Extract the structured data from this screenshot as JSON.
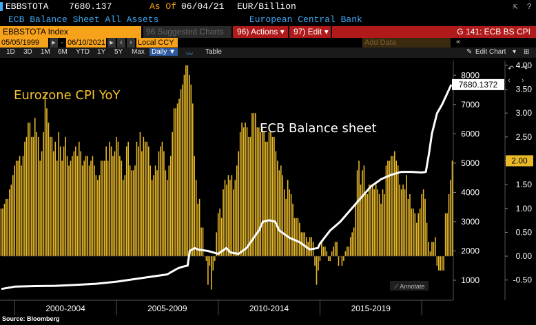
{
  "header": {
    "ticker": "EBBSTOTA",
    "last_value": "7680.137",
    "as_of_label": "As Of",
    "as_of_date": "06/04/21",
    "units": "EUR/Billion",
    "description": "ECB Balance Sheet All Assets",
    "source_name": "European Central Bank"
  },
  "toolbar": {
    "security": "EBBSTOTA Index",
    "suggested": "96 Suggested Charts",
    "actions": "96) Actions ▾",
    "edit": "97) Edit ▾",
    "chart_id": "G 141: ECB BS CPI"
  },
  "dates": {
    "start": "05/05/1999",
    "end": "06/10/2021",
    "currency": "Local CCY",
    "add_data": "Add Data"
  },
  "periods": {
    "items": [
      "1D",
      "3D",
      "1M",
      "6M",
      "YTD",
      "1Y",
      "5Y",
      "Max"
    ],
    "frequency": "Daily ▼",
    "table_label": "Table",
    "edit_chart": "Edit Chart"
  },
  "footer": {
    "source": "Source: Bloomberg"
  },
  "colors": {
    "cpi_bars": "#e9b929",
    "balance_line": "#ffffff",
    "cpi_label": "#f2c230",
    "background": "#000000"
  },
  "chart_data": {
    "type": "bar+line",
    "annotations": [
      "Eurozone CPI YoY",
      "ECB Balance sheet"
    ],
    "x_tick_labels": [
      "2000-2004",
      "2005-2009",
      "2010-2014",
      "2015-2019"
    ],
    "xlim": [
      1999.35,
      2021.45
    ],
    "left_axis": {
      "ticks": [
        1000,
        2000,
        3000,
        4000,
        5000,
        6000,
        7000,
        8000
      ],
      "range": [
        600,
        8500
      ]
    },
    "right_axis": {
      "ticks": [
        "-0.50",
        "0.00",
        "0.50",
        "1.00",
        "1.50",
        "2.00",
        "2.50",
        "3.00",
        "3.50",
        "4.00"
      ],
      "range": [
        -0.75,
        4.1
      ]
    },
    "last_value_label": "7680.1372",
    "last_cpi_label": "2.00",
    "annotate_label": "Annotate",
    "series": [
      {
        "name": "Eurozone CPI YoY",
        "type": "bar",
        "axis": "right",
        "monthly_start": "1999-05",
        "values": [
          1.0,
          1.0,
          1.1,
          1.2,
          1.2,
          1.4,
          1.5,
          1.7,
          1.9,
          2.0,
          2.0,
          2.1,
          1.9,
          2.1,
          2.4,
          2.5,
          2.8,
          2.8,
          2.5,
          2.5,
          2.9,
          2.6,
          2.5,
          2.0,
          2.2,
          2.6,
          3.4,
          3.1,
          2.8,
          2.5,
          2.5,
          2.2,
          2.4,
          2.0,
          2.6,
          2.3,
          2.0,
          2.3,
          2.5,
          2.1,
          1.9,
          2.0,
          2.1,
          2.2,
          2.3,
          2.1,
          2.4,
          2.2,
          1.9,
          2.0,
          2.1,
          2.1,
          1.9,
          2.0,
          2.1,
          1.9,
          1.7,
          1.6,
          1.7,
          2.0,
          2.0,
          2.0,
          2.3,
          2.0,
          2.4,
          2.3,
          2.1,
          2.2,
          2.5,
          2.4,
          2.1,
          2.0,
          1.6,
          1.7,
          2.3,
          2.4,
          1.9,
          1.8,
          1.8,
          1.9,
          2.4,
          2.3,
          2.6,
          2.2,
          2.5,
          2.4,
          2.4,
          2.3,
          1.9,
          1.6,
          1.7,
          1.9,
          1.8,
          2.2,
          2.3,
          2.4,
          2.2,
          1.8,
          1.6,
          1.9,
          2.1,
          2.6,
          3.1,
          3.1,
          3.2,
          3.3,
          3.5,
          3.6,
          3.8,
          4.0,
          4.0,
          3.8,
          3.6,
          3.2,
          2.1,
          1.6,
          1.1,
          1.2,
          0.6,
          0.6,
          0.0,
          -0.1,
          -0.6,
          -0.2,
          -0.7,
          -0.3,
          -0.1,
          0.5,
          0.9,
          1.0,
          0.8,
          1.4,
          1.6,
          1.5,
          1.7,
          1.6,
          1.7,
          1.4,
          1.6,
          1.9,
          2.2,
          2.6,
          2.8,
          2.7,
          2.8,
          2.7,
          2.5,
          2.5,
          3.0,
          3.0,
          3.0,
          2.7,
          2.7,
          2.6,
          2.7,
          2.6,
          2.4,
          2.4,
          2.6,
          2.6,
          2.5,
          2.5,
          2.2,
          2.0,
          1.8,
          1.9,
          1.7,
          1.4,
          1.2,
          1.6,
          1.4,
          1.3,
          1.1,
          0.8,
          0.8,
          0.8,
          0.7,
          0.5,
          0.5,
          0.5,
          0.4,
          0.3,
          0.4,
          0.4,
          0.3,
          -0.2,
          -0.6,
          -0.3,
          -0.1,
          0.3,
          0.2,
          0.2,
          0.1,
          -0.1,
          -0.1,
          0.1,
          0.2,
          0.3,
          0.3,
          -0.2,
          0.0,
          -0.2,
          -0.1,
          0.1,
          0.2,
          0.2,
          0.4,
          0.5,
          0.6,
          1.1,
          1.8,
          2.0,
          1.5,
          1.8,
          1.9,
          1.3,
          1.3,
          1.5,
          1.5,
          1.5,
          1.4,
          1.5,
          1.4,
          1.3,
          1.1,
          1.4,
          1.3,
          1.9,
          2.0,
          2.0,
          2.1,
          2.1,
          2.2,
          2.0,
          1.9,
          1.5,
          1.4,
          1.5,
          1.4,
          1.7,
          1.2,
          1.3,
          1.0,
          1.0,
          0.9,
          0.7,
          0.9,
          1.0,
          1.3,
          1.4,
          1.2,
          0.7,
          0.3,
          0.1,
          0.3,
          0.3,
          0.4,
          -0.2,
          -0.3,
          -0.3,
          -0.3,
          -0.3,
          0.9,
          0.9,
          1.3,
          1.6,
          2.0
        ]
      },
      {
        "name": "ECB Balance sheet",
        "type": "line",
        "axis": "left",
        "points": [
          [
            1999.35,
            700
          ],
          [
            2000.0,
            780
          ],
          [
            2001.0,
            800
          ],
          [
            2002.0,
            810
          ],
          [
            2003.0,
            840
          ],
          [
            2004.0,
            880
          ],
          [
            2005.0,
            950
          ],
          [
            2006.0,
            1050
          ],
          [
            2007.0,
            1150
          ],
          [
            2007.5,
            1200
          ],
          [
            2007.75,
            1300
          ],
          [
            2008.0,
            1400
          ],
          [
            2008.2,
            1450
          ],
          [
            2008.5,
            1500
          ],
          [
            2008.6,
            2000
          ],
          [
            2008.85,
            2100
          ],
          [
            2009.0,
            2050
          ],
          [
            2009.5,
            2000
          ],
          [
            2010.0,
            1900
          ],
          [
            2010.4,
            2100
          ],
          [
            2010.6,
            1950
          ],
          [
            2011.0,
            1900
          ],
          [
            2011.4,
            2100
          ],
          [
            2011.7,
            2400
          ],
          [
            2012.0,
            2700
          ],
          [
            2012.2,
            3000
          ],
          [
            2012.5,
            3050
          ],
          [
            2012.8,
            3000
          ],
          [
            2013.0,
            2700
          ],
          [
            2013.5,
            2450
          ],
          [
            2014.0,
            2300
          ],
          [
            2014.5,
            2050
          ],
          [
            2014.9,
            2100
          ],
          [
            2015.0,
            2250
          ],
          [
            2015.5,
            2700
          ],
          [
            2016.0,
            3000
          ],
          [
            2016.5,
            3400
          ],
          [
            2017.0,
            3800
          ],
          [
            2017.5,
            4200
          ],
          [
            2018.0,
            4450
          ],
          [
            2018.5,
            4600
          ],
          [
            2019.0,
            4700
          ],
          [
            2019.5,
            4700
          ],
          [
            2020.0,
            4680
          ],
          [
            2020.2,
            4700
          ],
          [
            2020.35,
            5300
          ],
          [
            2020.5,
            6000
          ],
          [
            2020.75,
            6700
          ],
          [
            2021.0,
            7000
          ],
          [
            2021.2,
            7300
          ],
          [
            2021.45,
            7680
          ]
        ]
      }
    ]
  }
}
